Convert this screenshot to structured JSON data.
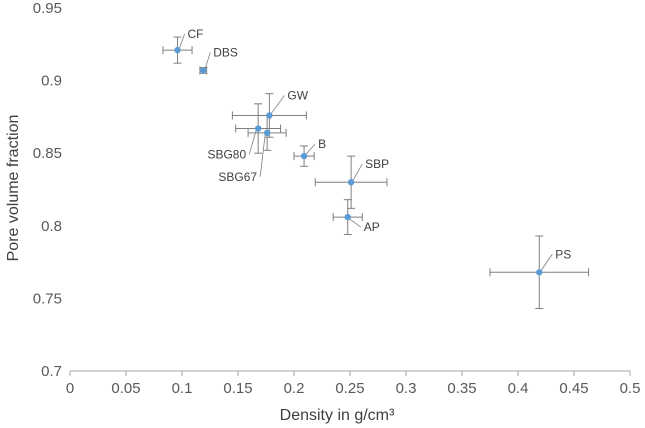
{
  "chart_data": {
    "type": "scatter",
    "title": "",
    "xlabel": "Density in g/cm³",
    "ylabel": "Pore volume fraction",
    "xlim": [
      0,
      0.5
    ],
    "ylim": [
      0.7,
      0.95
    ],
    "x_ticks": [
      "0",
      "0.05",
      "0.1",
      "0.15",
      "0.2",
      "0.25",
      "0.3",
      "0.35",
      "0.4",
      "0.45",
      "0.5"
    ],
    "y_ticks": [
      "0.7",
      "0.75",
      "0.8",
      "0.85",
      "0.9",
      "0.95"
    ],
    "grid": false,
    "legend": "none",
    "colors": {
      "point": "#5b9bd5",
      "error_bar": "#7f7f7f",
      "axis": "#a6a6a6",
      "leader": "#7f7f7f"
    },
    "points": [
      {
        "label": "CF",
        "x": 0.096,
        "y": 0.921,
        "x_err": 0.013,
        "y_err": 0.009
      },
      {
        "label": "DBS",
        "x": 0.119,
        "y": 0.907,
        "x_err": 0.003,
        "y_err": 0.002
      },
      {
        "label": "GW",
        "x": 0.178,
        "y": 0.876,
        "x_err": 0.033,
        "y_err": 0.015
      },
      {
        "label": "SBG80",
        "x": 0.168,
        "y": 0.867,
        "x_err": 0.02,
        "y_err": 0.017
      },
      {
        "label": "SBG67",
        "x": 0.176,
        "y": 0.864,
        "x_err": 0.017,
        "y_err": 0.012
      },
      {
        "label": "B",
        "x": 0.209,
        "y": 0.848,
        "x_err": 0.009,
        "y_err": 0.007
      },
      {
        "label": "SBP",
        "x": 0.251,
        "y": 0.83,
        "x_err": 0.032,
        "y_err": 0.018
      },
      {
        "label": "AP",
        "x": 0.248,
        "y": 0.806,
        "x_err": 0.013,
        "y_err": 0.012
      },
      {
        "label": "PS",
        "x": 0.419,
        "y": 0.768,
        "x_err": 0.044,
        "y_err": 0.025
      }
    ]
  }
}
